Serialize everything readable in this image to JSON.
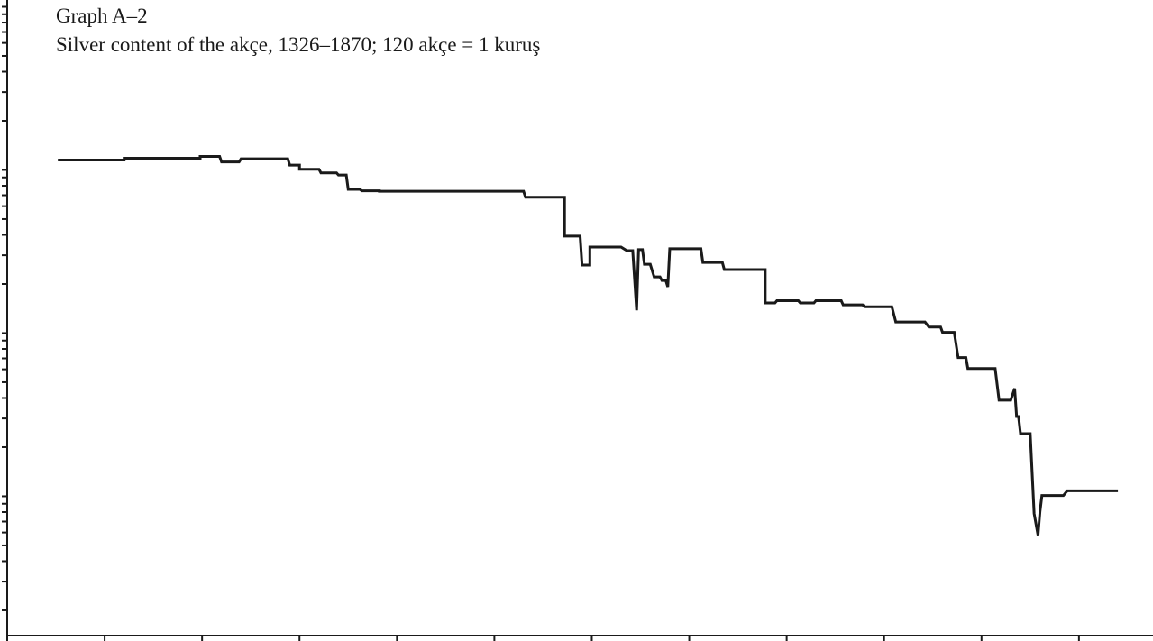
{
  "chart_data": {
    "type": "line",
    "title": "Graph A–2",
    "subtitle": "Silver content of the akçe, 1326–1870; 120 akçe = 1 kuruş",
    "color": "#1a1a1a",
    "log_y": true,
    "grid": false,
    "xlim": [
      1300,
      1888
    ],
    "xticks": [
      1300,
      1350,
      1400,
      1450,
      1500,
      1550,
      1600,
      1650,
      1700,
      1750,
      1800,
      1850
    ],
    "ylim": [
      0.0014,
      11
    ],
    "yticks": [
      0.002,
      0.003,
      0.004,
      0.005,
      0.006,
      0.007,
      0.008,
      0.009,
      0.01,
      0.02,
      0.03,
      0.04,
      0.05,
      0.06,
      0.07,
      0.08,
      0.09,
      0.1,
      0.2,
      0.3,
      0.4,
      0.5,
      0.6,
      0.7,
      0.8,
      0.9,
      1,
      2,
      3,
      4,
      5,
      6,
      7,
      8,
      9,
      10
    ],
    "x": [
      1326,
      1360,
      1360,
      1399,
      1399,
      1409,
      1410,
      1419,
      1420,
      1444,
      1445,
      1450,
      1450,
      1460,
      1461,
      1469,
      1470,
      1474,
      1475,
      1481,
      1482,
      1491,
      1491,
      1565,
      1566,
      1586,
      1586,
      1594,
      1595,
      1599,
      1599,
      1615,
      1618,
      1621,
      1623,
      1624,
      1626,
      1627,
      1630,
      1632,
      1635,
      1636,
      1638,
      1639,
      1640,
      1656,
      1657,
      1667,
      1668,
      1689,
      1689,
      1694,
      1695,
      1706,
      1707,
      1714,
      1715,
      1728,
      1729,
      1739,
      1740,
      1754,
      1756,
      1771,
      1773,
      1779,
      1780,
      1786,
      1788,
      1792,
      1793,
      1807,
      1809,
      1815,
      1817,
      1818,
      1819,
      1820,
      1825,
      1827,
      1829,
      1830,
      1831,
      1842,
      1844,
      1870
    ],
    "values": [
      1.15,
      1.15,
      1.18,
      1.18,
      1.21,
      1.21,
      1.12,
      1.12,
      1.17,
      1.17,
      1.07,
      1.07,
      1.01,
      1.01,
      0.96,
      0.96,
      0.93,
      0.93,
      0.76,
      0.76,
      0.745,
      0.745,
      0.74,
      0.74,
      0.68,
      0.68,
      0.393,
      0.393,
      0.261,
      0.261,
      0.337,
      0.337,
      0.32,
      0.32,
      0.138,
      0.325,
      0.325,
      0.264,
      0.264,
      0.221,
      0.221,
      0.21,
      0.21,
      0.192,
      0.329,
      0.329,
      0.271,
      0.271,
      0.245,
      0.245,
      0.153,
      0.153,
      0.158,
      0.158,
      0.153,
      0.153,
      0.158,
      0.158,
      0.149,
      0.149,
      0.145,
      0.145,
      0.117,
      0.117,
      0.109,
      0.109,
      0.101,
      0.101,
      0.0708,
      0.0708,
      0.0607,
      0.0607,
      0.0388,
      0.0388,
      0.0458,
      0.0308,
      0.0308,
      0.0242,
      0.0242,
      0.00784,
      0.00577,
      0.00805,
      0.0101,
      0.0101,
      0.0108,
      0.0108
    ]
  }
}
